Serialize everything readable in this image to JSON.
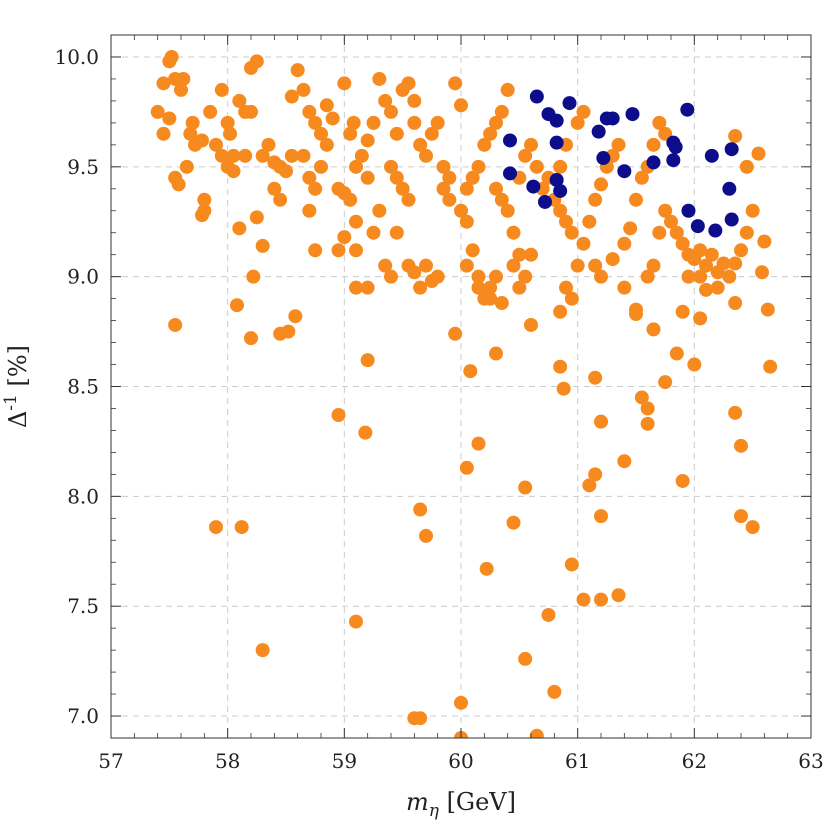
{
  "chart_data": {
    "type": "scatter",
    "xlabel": "m_η [GeV]",
    "ylabel": "Δ^{-1} [%]",
    "xlim": [
      57,
      63
    ],
    "ylim": [
      6.9,
      10.1
    ],
    "xticks": [
      "57",
      "58",
      "59",
      "60",
      "61",
      "62",
      "63"
    ],
    "yticks": [
      "7.0",
      "7.5",
      "8.0",
      "8.5",
      "9.0",
      "9.5",
      "10.0"
    ],
    "grid": true,
    "colors": {
      "orange": "#f78a1e",
      "blue": "#0d0d8c",
      "frame": "#333333",
      "grid": "#cccccc"
    },
    "series": [
      {
        "color": "orange",
        "points": [
          [
            57.4,
            9.75
          ],
          [
            57.45,
            9.88
          ],
          [
            57.5,
            9.98
          ],
          [
            57.52,
            10.0
          ],
          [
            57.55,
            9.9
          ],
          [
            57.6,
            9.85
          ],
          [
            57.62,
            9.9
          ],
          [
            57.5,
            9.72
          ],
          [
            57.55,
            9.45
          ],
          [
            57.58,
            9.42
          ],
          [
            57.65,
            9.5
          ],
          [
            57.68,
            9.65
          ],
          [
            57.7,
            9.7
          ],
          [
            57.72,
            9.6
          ],
          [
            57.78,
            9.62
          ],
          [
            57.8,
            9.3
          ],
          [
            57.78,
            9.28
          ],
          [
            57.8,
            9.35
          ],
          [
            57.45,
            9.65
          ],
          [
            57.55,
            8.78
          ],
          [
            57.85,
            9.75
          ],
          [
            57.9,
            9.6
          ],
          [
            57.95,
            9.85
          ],
          [
            58.0,
            9.7
          ],
          [
            58.02,
            9.65
          ],
          [
            58.05,
            9.55
          ],
          [
            58.0,
            9.5
          ],
          [
            58.05,
            9.48
          ],
          [
            57.95,
            9.55
          ],
          [
            58.1,
            9.8
          ],
          [
            58.15,
            9.75
          ],
          [
            58.2,
            9.95
          ],
          [
            58.25,
            9.98
          ],
          [
            58.2,
            9.75
          ],
          [
            58.15,
            9.55
          ],
          [
            58.1,
            9.22
          ],
          [
            58.25,
            9.27
          ],
          [
            58.3,
            9.14
          ],
          [
            58.22,
            9.0
          ],
          [
            58.08,
            8.87
          ],
          [
            58.2,
            8.72
          ],
          [
            58.3,
            9.55
          ],
          [
            58.35,
            9.6
          ],
          [
            58.4,
            9.52
          ],
          [
            58.45,
            9.5
          ],
          [
            58.4,
            9.4
          ],
          [
            58.45,
            9.35
          ],
          [
            58.5,
            9.48
          ],
          [
            58.55,
            9.55
          ],
          [
            58.55,
            9.82
          ],
          [
            58.6,
            9.94
          ],
          [
            58.65,
            9.85
          ],
          [
            58.7,
            9.75
          ],
          [
            58.75,
            9.7
          ],
          [
            58.8,
            9.65
          ],
          [
            58.65,
            9.55
          ],
          [
            58.7,
            9.45
          ],
          [
            58.75,
            9.4
          ],
          [
            58.7,
            9.3
          ],
          [
            58.8,
            9.5
          ],
          [
            58.75,
            9.12
          ],
          [
            58.58,
            8.82
          ],
          [
            58.52,
            8.75
          ],
          [
            58.45,
            8.74
          ],
          [
            58.85,
            9.6
          ],
          [
            58.85,
            9.78
          ],
          [
            58.9,
            9.72
          ],
          [
            58.95,
            9.4
          ],
          [
            59.0,
            9.38
          ],
          [
            59.05,
            9.35
          ],
          [
            59.0,
            9.18
          ],
          [
            58.95,
            9.12
          ],
          [
            59.0,
            9.88
          ],
          [
            59.05,
            9.65
          ],
          [
            59.08,
            9.7
          ],
          [
            59.1,
            9.5
          ],
          [
            59.15,
            9.55
          ],
          [
            59.2,
            9.45
          ],
          [
            59.25,
            9.7
          ],
          [
            59.1,
            9.25
          ],
          [
            59.1,
            9.12
          ],
          [
            59.25,
            9.2
          ],
          [
            59.3,
            9.3
          ],
          [
            59.2,
            9.62
          ],
          [
            59.3,
            9.9
          ],
          [
            59.35,
            9.8
          ],
          [
            59.4,
            9.75
          ],
          [
            59.45,
            9.65
          ],
          [
            59.4,
            9.5
          ],
          [
            59.45,
            9.45
          ],
          [
            59.5,
            9.85
          ],
          [
            59.55,
            9.88
          ],
          [
            59.6,
            9.8
          ],
          [
            59.5,
            9.4
          ],
          [
            59.55,
            9.35
          ],
          [
            59.45,
            9.2
          ],
          [
            59.55,
            9.05
          ],
          [
            59.6,
            9.02
          ],
          [
            59.65,
            8.95
          ],
          [
            59.7,
            9.05
          ],
          [
            59.75,
            8.98
          ],
          [
            59.8,
            9.0
          ],
          [
            59.1,
            8.95
          ],
          [
            59.2,
            8.95
          ],
          [
            59.6,
            9.7
          ],
          [
            59.65,
            9.6
          ],
          [
            59.7,
            9.55
          ],
          [
            59.75,
            9.65
          ],
          [
            59.8,
            9.7
          ],
          [
            59.85,
            9.5
          ],
          [
            59.9,
            9.45
          ],
          [
            59.95,
            9.88
          ],
          [
            60.0,
            9.78
          ],
          [
            59.85,
            9.4
          ],
          [
            59.9,
            9.35
          ],
          [
            60.0,
            9.3
          ],
          [
            60.05,
            9.25
          ],
          [
            60.1,
            9.12
          ],
          [
            60.05,
            9.05
          ],
          [
            60.15,
            9.0
          ],
          [
            60.15,
            8.95
          ],
          [
            60.2,
            8.9
          ],
          [
            60.05,
            9.4
          ],
          [
            60.1,
            9.45
          ],
          [
            60.15,
            9.5
          ],
          [
            60.2,
            9.6
          ],
          [
            60.25,
            9.65
          ],
          [
            60.3,
            9.7
          ],
          [
            60.35,
            9.75
          ],
          [
            60.4,
            9.85
          ],
          [
            60.3,
            9.4
          ],
          [
            60.35,
            9.35
          ],
          [
            60.4,
            9.3
          ],
          [
            60.45,
            9.2
          ],
          [
            60.5,
            9.1
          ],
          [
            60.45,
            9.05
          ],
          [
            60.3,
            9.0
          ],
          [
            60.25,
            8.95
          ],
          [
            60.35,
            8.88
          ],
          [
            60.5,
            8.95
          ],
          [
            60.55,
            9.0
          ],
          [
            60.6,
            9.1
          ],
          [
            60.5,
            9.45
          ],
          [
            60.55,
            9.55
          ],
          [
            60.6,
            9.6
          ],
          [
            60.65,
            9.5
          ],
          [
            60.7,
            9.4
          ],
          [
            60.75,
            9.45
          ],
          [
            60.8,
            9.35
          ],
          [
            60.85,
            9.3
          ],
          [
            60.9,
            9.25
          ],
          [
            60.95,
            9.2
          ],
          [
            60.85,
            9.5
          ],
          [
            60.9,
            9.6
          ],
          [
            61.0,
            9.7
          ],
          [
            61.05,
            9.75
          ],
          [
            60.95,
            8.9
          ],
          [
            61.0,
            9.05
          ],
          [
            61.05,
            9.15
          ],
          [
            61.1,
            9.25
          ],
          [
            61.15,
            9.35
          ],
          [
            61.2,
            9.42
          ],
          [
            61.25,
            9.5
          ],
          [
            61.3,
            9.55
          ],
          [
            61.35,
            9.6
          ],
          [
            61.15,
            9.05
          ],
          [
            61.2,
            9.0
          ],
          [
            61.3,
            9.08
          ],
          [
            61.4,
            9.15
          ],
          [
            61.45,
            9.22
          ],
          [
            61.5,
            9.35
          ],
          [
            61.55,
            9.45
          ],
          [
            61.6,
            9.5
          ],
          [
            61.65,
            9.6
          ],
          [
            61.7,
            9.7
          ],
          [
            61.75,
            9.65
          ],
          [
            61.4,
            8.95
          ],
          [
            61.5,
            8.85
          ],
          [
            61.6,
            9.0
          ],
          [
            61.65,
            9.05
          ],
          [
            61.7,
            9.2
          ],
          [
            61.75,
            9.3
          ],
          [
            61.8,
            9.25
          ],
          [
            61.85,
            9.2
          ],
          [
            61.9,
            9.15
          ],
          [
            61.95,
            9.1
          ],
          [
            62.0,
            9.08
          ],
          [
            62.05,
            9.12
          ],
          [
            62.1,
            9.05
          ],
          [
            62.15,
            9.1
          ],
          [
            62.2,
            9.02
          ],
          [
            62.25,
            9.06
          ],
          [
            62.3,
            9.0
          ],
          [
            62.35,
            9.06
          ],
          [
            62.4,
            9.12
          ],
          [
            62.45,
            9.2
          ],
          [
            62.5,
            9.3
          ],
          [
            62.35,
            9.64
          ],
          [
            62.45,
            9.5
          ],
          [
            62.55,
            9.56
          ],
          [
            62.6,
            9.16
          ],
          [
            62.58,
            9.02
          ],
          [
            62.63,
            8.85
          ],
          [
            62.65,
            8.59
          ],
          [
            62.35,
            8.88
          ],
          [
            62.2,
            8.95
          ],
          [
            62.1,
            8.94
          ],
          [
            61.65,
            8.76
          ],
          [
            61.9,
            8.84
          ],
          [
            62.05,
            8.81
          ],
          [
            61.85,
            8.65
          ],
          [
            61.75,
            8.52
          ],
          [
            61.55,
            8.45
          ],
          [
            61.6,
            8.4
          ],
          [
            61.6,
            8.33
          ],
          [
            61.2,
            8.34
          ],
          [
            61.15,
            8.54
          ],
          [
            61.4,
            8.16
          ],
          [
            61.15,
            8.1
          ],
          [
            61.1,
            8.05
          ],
          [
            61.2,
            7.91
          ],
          [
            61.9,
            8.07
          ],
          [
            62.35,
            8.38
          ],
          [
            62.4,
            8.23
          ],
          [
            62.4,
            7.91
          ],
          [
            62.5,
            7.86
          ],
          [
            60.95,
            7.69
          ],
          [
            61.05,
            7.53
          ],
          [
            61.2,
            7.53
          ],
          [
            61.35,
            7.55
          ],
          [
            60.75,
            7.46
          ],
          [
            60.55,
            7.26
          ],
          [
            60.8,
            7.11
          ],
          [
            60.65,
            6.91
          ],
          [
            60.0,
            6.9
          ],
          [
            60.0,
            7.06
          ],
          [
            59.6,
            6.99
          ],
          [
            59.65,
            6.99
          ],
          [
            59.1,
            7.43
          ],
          [
            58.3,
            7.3
          ],
          [
            57.9,
            7.86
          ],
          [
            58.12,
            7.86
          ],
          [
            59.65,
            7.94
          ],
          [
            59.7,
            7.82
          ],
          [
            60.45,
            7.88
          ],
          [
            60.55,
            8.04
          ],
          [
            60.05,
            8.13
          ],
          [
            60.15,
            8.24
          ],
          [
            60.22,
            7.67
          ],
          [
            59.18,
            8.29
          ],
          [
            58.95,
            8.37
          ],
          [
            59.2,
            8.62
          ],
          [
            60.3,
            8.65
          ],
          [
            60.08,
            8.57
          ],
          [
            59.95,
            8.74
          ],
          [
            60.85,
            8.59
          ],
          [
            60.88,
            8.49
          ],
          [
            60.85,
            8.84
          ],
          [
            60.6,
            8.78
          ],
          [
            59.4,
            9.0
          ],
          [
            59.35,
            9.05
          ],
          [
            60.25,
            8.9
          ],
          [
            60.9,
            8.95
          ],
          [
            61.5,
            8.83
          ],
          [
            62.0,
            8.6
          ],
          [
            61.95,
            9.0
          ],
          [
            62.05,
            9.0
          ]
        ]
      },
      {
        "color": "blue",
        "points": [
          [
            60.65,
            9.82
          ],
          [
            60.93,
            9.79
          ],
          [
            60.42,
            9.62
          ],
          [
            60.75,
            9.74
          ],
          [
            60.82,
            9.71
          ],
          [
            60.82,
            9.61
          ],
          [
            61.18,
            9.66
          ],
          [
            61.25,
            9.72
          ],
          [
            61.3,
            9.72
          ],
          [
            61.47,
            9.74
          ],
          [
            61.22,
            9.54
          ],
          [
            61.4,
            9.48
          ],
          [
            61.65,
            9.52
          ],
          [
            61.82,
            9.53
          ],
          [
            61.82,
            9.61
          ],
          [
            61.84,
            9.59
          ],
          [
            61.94,
            9.76
          ],
          [
            62.15,
            9.55
          ],
          [
            62.32,
            9.58
          ],
          [
            60.42,
            9.47
          ],
          [
            60.62,
            9.41
          ],
          [
            60.72,
            9.34
          ],
          [
            60.82,
            9.44
          ],
          [
            60.85,
            9.39
          ],
          [
            61.95,
            9.3
          ],
          [
            62.03,
            9.23
          ],
          [
            62.18,
            9.21
          ],
          [
            62.3,
            9.4
          ],
          [
            62.32,
            9.26
          ]
        ]
      }
    ]
  }
}
